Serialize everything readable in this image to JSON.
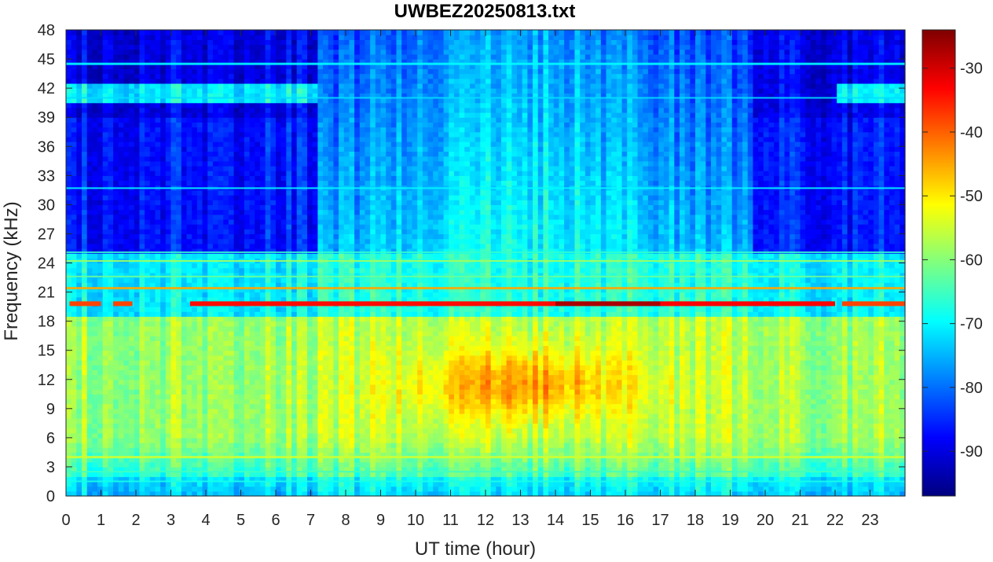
{
  "chart_data": {
    "type": "heatmap",
    "title": "UWBEZ20250813.txt",
    "xlabel": "UT time (hour)",
    "ylabel": "Frequency (kHz)",
    "xlim": [
      0,
      24
    ],
    "ylim": [
      0,
      48
    ],
    "xticks": [
      0,
      1,
      2,
      3,
      4,
      5,
      6,
      7,
      8,
      9,
      10,
      11,
      12,
      13,
      14,
      15,
      16,
      17,
      18,
      19,
      20,
      21,
      22,
      23
    ],
    "yticks": [
      0,
      3,
      6,
      9,
      12,
      15,
      18,
      21,
      24,
      27,
      30,
      33,
      36,
      39,
      42,
      45,
      48
    ],
    "colorbar": {
      "colormap": "jet",
      "range": [
        -97,
        -24
      ],
      "ticks": [
        -90,
        -80,
        -70,
        -60,
        -50,
        -40,
        -30
      ]
    },
    "grid": false,
    "description_features": {
      "strong_narrowband_lines_khz": [
        19.8,
        21.4
      ],
      "weak_narrowband_lines_khz": [
        24.2,
        22.6,
        44.5,
        41.0,
        31.7,
        4.0,
        2.5,
        1.5
      ],
      "night_time_quiet_region_hours": [
        [
          0,
          7.2
        ],
        [
          19.7,
          24
        ]
      ],
      "daytime_sferic_peak": {
        "hours": [
          10,
          16.5
        ],
        "khz": [
          8,
          15
        ],
        "level_db": -45
      }
    }
  }
}
